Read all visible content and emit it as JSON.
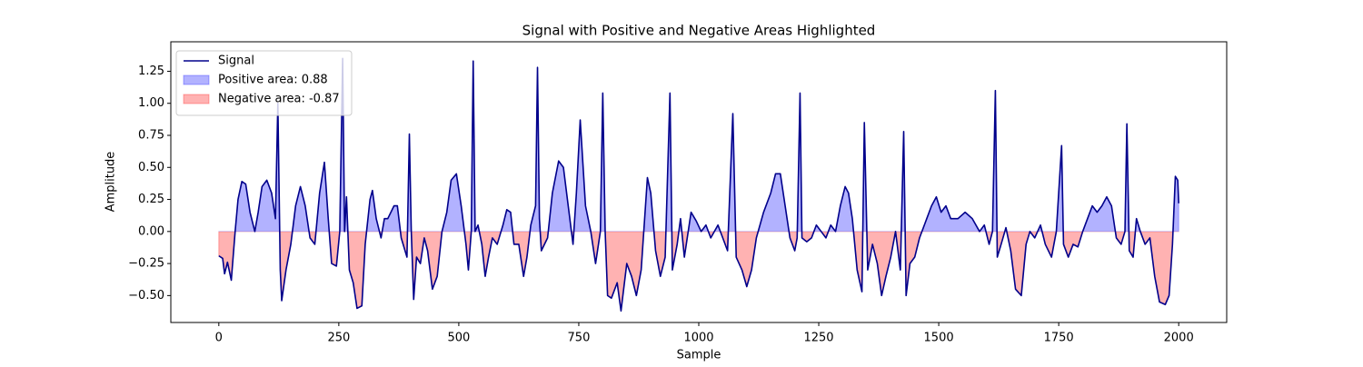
{
  "chart_data": {
    "type": "line",
    "title": "Signal with Positive and Negative Areas Highlighted",
    "x_label": "Sample",
    "y_label": "Amplitude",
    "xlim": [
      -100,
      2100
    ],
    "ylim": [
      -0.71,
      1.48
    ],
    "xticks": [
      0,
      250,
      500,
      750,
      1000,
      1250,
      1500,
      1750,
      2000
    ],
    "yticks": [
      {
        "value": -0.5,
        "label": "−0.50"
      },
      {
        "value": -0.25,
        "label": "−0.25"
      },
      {
        "value": 0,
        "label": "0.00"
      },
      {
        "value": 0.25,
        "label": "0.25"
      },
      {
        "value": 0.5,
        "label": "0.50"
      },
      {
        "value": 0.75,
        "label": "0.75"
      },
      {
        "value": 1.0,
        "label": "1.00"
      },
      {
        "value": 1.25,
        "label": "1.25"
      }
    ],
    "legend": "upper left",
    "series": [
      {
        "name": "Signal",
        "color": "#00008b",
        "x": [
          0,
          8,
          12,
          18,
          26,
          34,
          40,
          48,
          56,
          65,
          75,
          82,
          90,
          100,
          110,
          118,
          123,
          128,
          131,
          140,
          150,
          160,
          170,
          180,
          190,
          200,
          210,
          220,
          228,
          235,
          245,
          252,
          258,
          262,
          266,
          272,
          280,
          288,
          298,
          305,
          315,
          320,
          328,
          338,
          345,
          352,
          365,
          372,
          380,
          392,
          397,
          401,
          406,
          412,
          420,
          428,
          435,
          445,
          455,
          465,
          475,
          484,
          495,
          505,
          515,
          520,
          526,
          530,
          534,
          540,
          548,
          555,
          562,
          570,
          580,
          592,
          600,
          608,
          615,
          625,
          635,
          642,
          650,
          660,
          664,
          668,
          672,
          685,
          695,
          708,
          718,
          728,
          738,
          745,
          753,
          764,
          775,
          785,
          795,
          800,
          805,
          810,
          818,
          830,
          838,
          850,
          860,
          870,
          880,
          893,
          900,
          910,
          920,
          930,
          940,
          945,
          955,
          962,
          970,
          984,
          995,
          1005,
          1015,
          1025,
          1040,
          1050,
          1060,
          1071,
          1078,
          1090,
          1100,
          1110,
          1120,
          1135,
          1150,
          1160,
          1170,
          1180,
          1190,
          1200,
          1205,
          1211,
          1215,
          1225,
          1235,
          1245,
          1255,
          1265,
          1275,
          1285,
          1295,
          1305,
          1312,
          1320,
          1330,
          1340,
          1345,
          1352,
          1362,
          1372,
          1381,
          1390,
          1400,
          1410,
          1420,
          1427,
          1432,
          1440,
          1450,
          1460,
          1475,
          1485,
          1495,
          1505,
          1515,
          1525,
          1540,
          1555,
          1570,
          1585,
          1595,
          1605,
          1612,
          1618,
          1622,
          1630,
          1640,
          1650,
          1660,
          1672,
          1682,
          1690,
          1700,
          1712,
          1722,
          1735,
          1745,
          1756,
          1760,
          1770,
          1780,
          1790,
          1800,
          1810,
          1820,
          1830,
          1840,
          1850,
          1860,
          1870,
          1880,
          1888,
          1892,
          1897,
          1905,
          1912,
          1920,
          1930,
          1940,
          1950,
          1960,
          1972,
          1980,
          1987,
          1993,
          1998,
          2000
        ],
        "values": [
          -0.19,
          -0.21,
          -0.33,
          -0.24,
          -0.38,
          0.0,
          0.25,
          0.39,
          0.37,
          0.15,
          0.0,
          0.15,
          0.35,
          0.4,
          0.3,
          0.1,
          1.0,
          -0.3,
          -0.54,
          -0.3,
          -0.1,
          0.2,
          0.35,
          0.2,
          -0.05,
          -0.1,
          0.3,
          0.54,
          0.1,
          -0.25,
          -0.27,
          0.0,
          1.35,
          0.0,
          0.27,
          -0.3,
          -0.4,
          -0.6,
          -0.58,
          -0.1,
          0.25,
          0.32,
          0.1,
          -0.05,
          0.1,
          0.1,
          0.2,
          0.2,
          -0.05,
          -0.2,
          0.76,
          0.0,
          -0.53,
          -0.2,
          -0.25,
          -0.05,
          -0.15,
          -0.45,
          -0.35,
          0.0,
          0.15,
          0.4,
          0.45,
          0.2,
          -0.1,
          -0.3,
          0.0,
          1.33,
          0.0,
          0.05,
          -0.1,
          -0.35,
          -0.2,
          -0.05,
          -0.1,
          0.05,
          0.17,
          0.15,
          -0.1,
          -0.1,
          -0.35,
          -0.2,
          0.05,
          0.2,
          1.28,
          0.1,
          -0.15,
          -0.05,
          0.3,
          0.55,
          0.5,
          0.2,
          -0.1,
          0.3,
          0.87,
          0.2,
          0.0,
          -0.25,
          0.0,
          1.08,
          0.0,
          -0.5,
          -0.52,
          -0.4,
          -0.62,
          -0.25,
          -0.35,
          -0.5,
          -0.3,
          0.42,
          0.3,
          -0.15,
          -0.35,
          -0.2,
          1.08,
          -0.3,
          -0.1,
          0.1,
          -0.2,
          0.15,
          0.08,
          0.0,
          0.05,
          -0.05,
          0.05,
          -0.05,
          -0.15,
          0.92,
          -0.2,
          -0.3,
          -0.43,
          -0.3,
          -0.05,
          0.15,
          0.3,
          0.45,
          0.45,
          0.2,
          -0.05,
          -0.15,
          -0.05,
          1.08,
          -0.05,
          -0.08,
          -0.05,
          0.05,
          0.0,
          -0.05,
          0.05,
          0.0,
          0.2,
          0.35,
          0.3,
          0.1,
          -0.3,
          -0.47,
          0.85,
          -0.3,
          -0.1,
          -0.25,
          -0.5,
          -0.35,
          -0.2,
          0.0,
          -0.3,
          0.78,
          -0.5,
          -0.25,
          -0.2,
          -0.05,
          0.1,
          0.2,
          0.27,
          0.15,
          0.2,
          0.1,
          0.1,
          0.15,
          0.1,
          0.0,
          0.05,
          -0.1,
          0.0,
          1.1,
          -0.2,
          -0.1,
          0.03,
          -0.15,
          -0.45,
          -0.5,
          -0.1,
          0.0,
          -0.05,
          0.05,
          -0.1,
          -0.2,
          0.0,
          0.67,
          -0.1,
          -0.2,
          -0.1,
          -0.12,
          0.0,
          0.1,
          0.2,
          0.15,
          0.2,
          0.27,
          0.2,
          -0.05,
          -0.1,
          0.0,
          0.84,
          -0.15,
          -0.2,
          0.1,
          0.0,
          -0.1,
          -0.05,
          -0.35,
          -0.55,
          -0.57,
          -0.5,
          -0.1,
          0.43,
          0.4,
          0.22
        ]
      }
    ],
    "fills": [
      {
        "name": "Positive area: 0.88",
        "color": "#0000ff",
        "side": "positive"
      },
      {
        "name": "Negative area: -0.87",
        "color": "#ff0000",
        "side": "negative"
      }
    ]
  }
}
